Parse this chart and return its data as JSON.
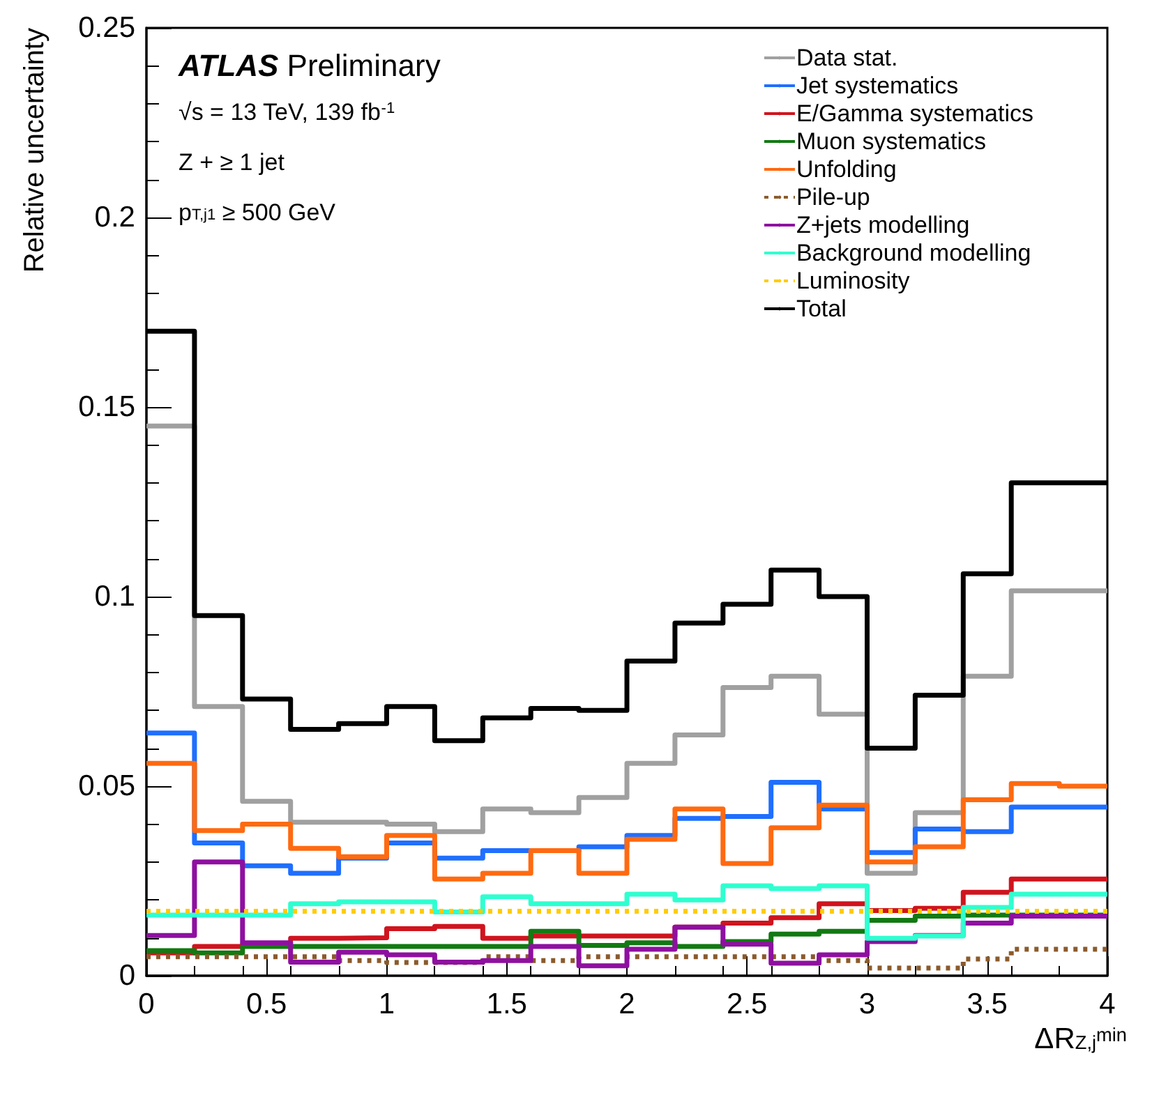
{
  "chart_data": {
    "type": "histogram",
    "xlabel": "ΔR$_{Z,j}$$^{min}$",
    "ylabel": "Relative uncertainty",
    "annotations": [
      "ATLAS Preliminary",
      "√s = 13 TeV, 139 fb$^{-1}$",
      "Z + ≥ 1 jet",
      "p$_{T,j1}$ ≥ 500 GeV"
    ],
    "bins": [
      0,
      0.2,
      0.4,
      0.6,
      0.8,
      1.0,
      1.2,
      1.4,
      1.6,
      1.8,
      2.0,
      2.2,
      2.4,
      2.6,
      2.8,
      3.0,
      3.2,
      3.4,
      3.6,
      3.8,
      4.0
    ],
    "xlim": [
      0,
      4
    ],
    "xticks": [
      0,
      0.5,
      1,
      1.5,
      2,
      2.5,
      3,
      3.5,
      4
    ],
    "ylim": [
      0,
      0.25
    ],
    "yticks": [
      0,
      0.05,
      0.1,
      0.15,
      0.2,
      0.25
    ],
    "legend": "top right",
    "series": [
      {
        "name": "Data stat.",
        "color": "#a0a0a0",
        "values": [
          0.145,
          0.071,
          0.046,
          0.0405,
          0.0405,
          0.04,
          0.038,
          0.044,
          0.043,
          0.047,
          0.056,
          0.0635,
          0.076,
          0.079,
          0.069,
          0.027,
          0.043,
          0.079,
          0.1015,
          0.1015
        ]
      },
      {
        "name": "Jet systematics",
        "color": "#1f6fff",
        "values": [
          0.064,
          0.035,
          0.029,
          0.027,
          0.031,
          0.035,
          0.031,
          0.033,
          0.033,
          0.034,
          0.037,
          0.0415,
          0.042,
          0.051,
          0.044,
          0.0325,
          0.0387,
          0.038,
          0.0445,
          0.0445
        ]
      },
      {
        "name": "E/Gamma systematics",
        "color": "#d0141e",
        "values": [
          0.006,
          0.0077,
          0.0083,
          0.0099,
          0.01,
          0.0124,
          0.013,
          0.0099,
          0.0105,
          0.0105,
          0.0105,
          0.0128,
          0.0139,
          0.0153,
          0.019,
          0.0172,
          0.0178,
          0.022,
          0.0255,
          0.0255
        ]
      },
      {
        "name": "Muon systematics",
        "color": "#127a12",
        "values": [
          0.0066,
          0.006,
          0.0077,
          0.0077,
          0.0077,
          0.0077,
          0.0077,
          0.0077,
          0.0117,
          0.008,
          0.0087,
          0.0077,
          0.009,
          0.011,
          0.0117,
          0.0146,
          0.0157,
          0.016,
          0.016,
          0.016
        ]
      },
      {
        "name": "Unfolding",
        "color": "#ff6a10",
        "values": [
          0.056,
          0.0383,
          0.04,
          0.0336,
          0.0314,
          0.037,
          0.0255,
          0.027,
          0.033,
          0.027,
          0.036,
          0.044,
          0.0296,
          0.039,
          0.045,
          0.03,
          0.034,
          0.0464,
          0.0507,
          0.05
        ]
      },
      {
        "name": "Pile-up",
        "color": "#8b5a2b",
        "line_style": "dotted",
        "values": [
          0.005,
          0.005,
          0.005,
          0.005,
          0.004,
          0.0035,
          0.0035,
          0.005,
          0.004,
          0.005,
          0.005,
          0.005,
          0.005,
          0.005,
          0.004,
          0.002,
          0.002,
          0.0044,
          0.007,
          0.007
        ]
      },
      {
        "name": "Z+jets modelling",
        "color": "#8e10a0",
        "values": [
          0.0106,
          0.03,
          0.0087,
          0.0036,
          0.0062,
          0.0055,
          0.0036,
          0.004,
          0.0077,
          0.0026,
          0.007,
          0.0128,
          0.0083,
          0.0033,
          0.0055,
          0.009,
          0.0106,
          0.0139,
          0.0157,
          0.0157
        ]
      },
      {
        "name": "Background modelling",
        "color": "#2fffd0",
        "values": [
          0.016,
          0.016,
          0.016,
          0.019,
          0.0195,
          0.0195,
          0.0168,
          0.0208,
          0.019,
          0.019,
          0.0215,
          0.02,
          0.0237,
          0.023,
          0.0237,
          0.0099,
          0.0105,
          0.018,
          0.0215,
          0.0215
        ]
      },
      {
        "name": "Luminosity",
        "color": "#ffcc00",
        "line_style": "dotted",
        "values": [
          0.017,
          0.017,
          0.017,
          0.017,
          0.017,
          0.017,
          0.017,
          0.017,
          0.017,
          0.017,
          0.017,
          0.017,
          0.017,
          0.017,
          0.017,
          0.017,
          0.017,
          0.017,
          0.017,
          0.017
        ]
      },
      {
        "name": "Total",
        "color": "#000000",
        "values": [
          0.17,
          0.095,
          0.073,
          0.065,
          0.0665,
          0.071,
          0.062,
          0.068,
          0.0705,
          0.07,
          0.083,
          0.093,
          0.098,
          0.107,
          0.1,
          0.06,
          0.074,
          0.106,
          0.13,
          0.13
        ]
      }
    ]
  }
}
